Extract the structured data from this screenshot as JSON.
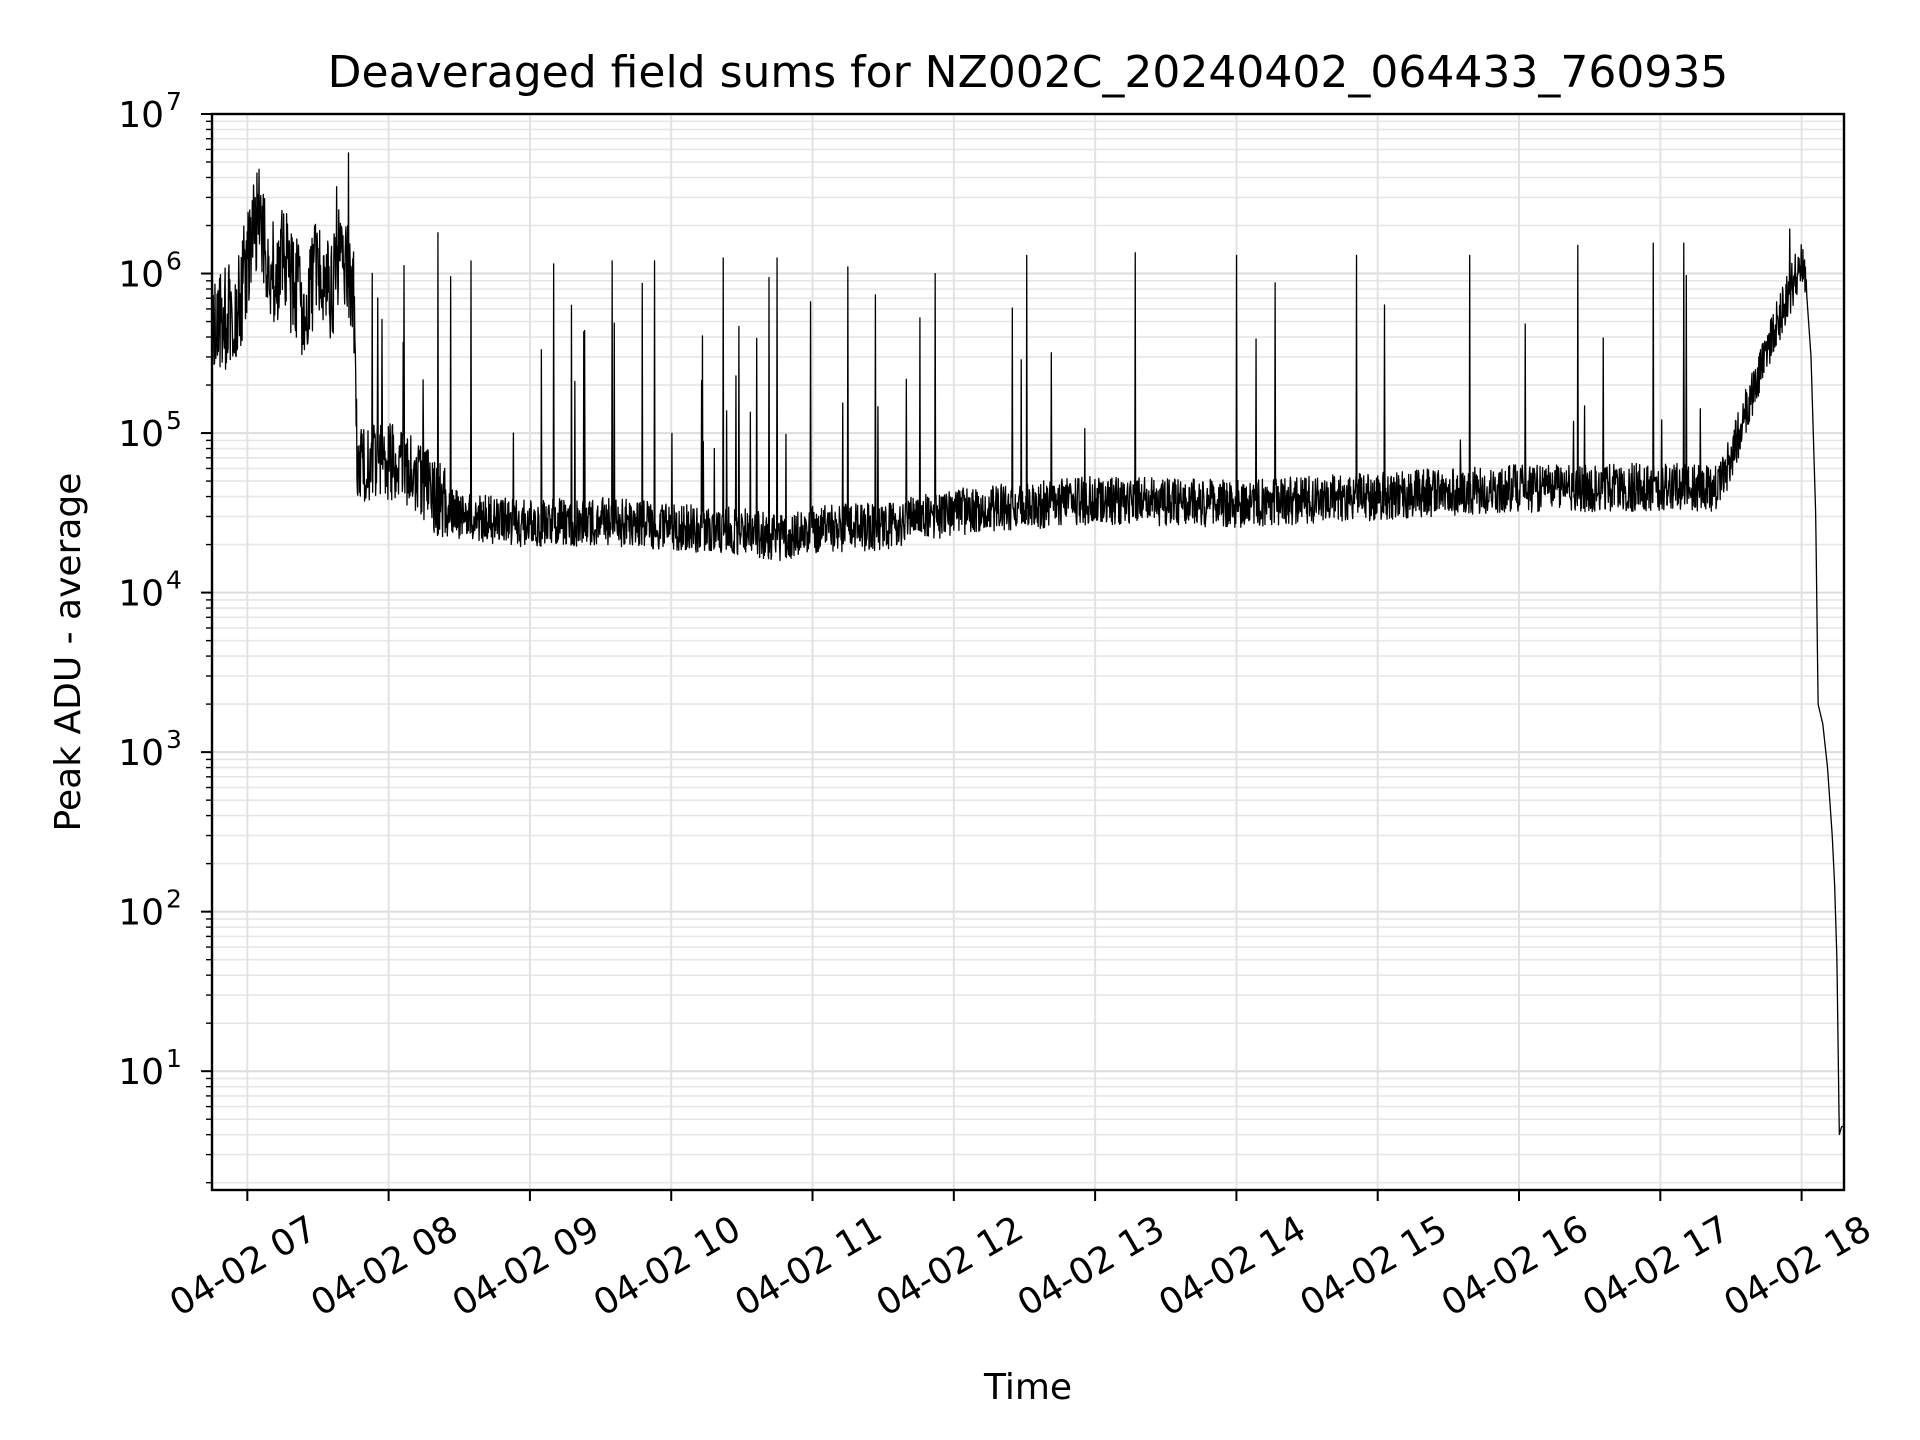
{
  "chart_data": {
    "type": "line",
    "title": "Deaveraged field sums for NZ002C_20240402_064433_760935",
    "xlabel": "Time",
    "ylabel": "Peak ADU - average",
    "yscale": "log",
    "ylim": [
      1.8,
      10000000
    ],
    "xlim": [
      "04-02 06:45",
      "04-02 18:18"
    ],
    "grid": "on (major and minor)",
    "line_color": "#000000",
    "x_ticks": [
      "04-02 07",
      "04-02 08",
      "04-02 09",
      "04-02 10",
      "04-02 11",
      "04-02 12",
      "04-02 13",
      "04-02 14",
      "04-02 15",
      "04-02 16",
      "04-02 17",
      "04-02 18"
    ],
    "y_ticks": [
      {
        "base": "10",
        "exp": "1",
        "value": 10
      },
      {
        "base": "10",
        "exp": "2",
        "value": 100
      },
      {
        "base": "10",
        "exp": "3",
        "value": 1000
      },
      {
        "base": "10",
        "exp": "4",
        "value": 10000
      },
      {
        "base": "10",
        "exp": "5",
        "value": 100000
      },
      {
        "base": "10",
        "exp": "6",
        "value": 1000000
      },
      {
        "base": "10",
        "exp": "7",
        "value": 10000000
      }
    ],
    "series": [
      {
        "points": [
          [
            "04-02 06:45",
            450000
          ],
          [
            "04-02 06:50",
            550000
          ],
          [
            "04-02 06:55",
            500000
          ],
          [
            "04-02 07:00",
            1200000
          ],
          [
            "04-02 07:05",
            2500000
          ],
          [
            "04-02 07:10",
            900000
          ],
          [
            "04-02 07:15",
            1300000
          ],
          [
            "04-02 07:20",
            800000
          ],
          [
            "04-02 07:25",
            600000
          ],
          [
            "04-02 07:30",
            1100000
          ],
          [
            "04-02 07:35",
            700000
          ],
          [
            "04-02 07:40",
            1500000
          ],
          [
            "04-02 07:45",
            900000
          ],
          [
            "04-02 07:47",
            60000
          ],
          [
            "04-02 07:55",
            70000
          ],
          [
            "04-02 08:10",
            60000
          ],
          [
            "04-02 08:20",
            40000
          ],
          [
            "04-02 08:30",
            30000
          ],
          [
            "04-02 09:00",
            27000
          ],
          [
            "04-02 09:30",
            28000
          ],
          [
            "04-02 10:00",
            26000
          ],
          [
            "04-02 10:30",
            24000
          ],
          [
            "04-02 10:45",
            22000
          ],
          [
            "04-02 11:00",
            25000
          ],
          [
            "04-02 11:30",
            26000
          ],
          [
            "04-02 12:00",
            32000
          ],
          [
            "04-02 12:30",
            35000
          ],
          [
            "04-02 13:00",
            38000
          ],
          [
            "04-02 13:30",
            37000
          ],
          [
            "04-02 14:00",
            36000
          ],
          [
            "04-02 14:30",
            38000
          ],
          [
            "04-02 15:00",
            40000
          ],
          [
            "04-02 15:30",
            43000
          ],
          [
            "04-02 16:00",
            45000
          ],
          [
            "04-02 16:30",
            45000
          ],
          [
            "04-02 17:00",
            46000
          ],
          [
            "04-02 17:25",
            45000
          ],
          [
            "04-02 17:30",
            70000
          ],
          [
            "04-02 17:40",
            200000
          ],
          [
            "04-02 17:50",
            500000
          ],
          [
            "04-02 17:58",
            1000000
          ],
          [
            "04-02 18:00",
            1100000
          ],
          [
            "04-02 18:02",
            800000
          ],
          [
            "04-02 18:04",
            300000
          ],
          [
            "04-02 18:06",
            30000
          ],
          [
            "04-02 18:07",
            2000
          ],
          [
            "04-02 18:09",
            1500
          ],
          [
            "04-02 18:11",
            800
          ],
          [
            "04-02 18:13",
            300
          ],
          [
            "04-02 18:14",
            150
          ],
          [
            "04-02 18:15",
            50
          ],
          [
            "04-02 18:16",
            4
          ],
          [
            "04-02 18:17",
            4.5
          ]
        ],
        "spikes": [
          [
            "04-02 07:05",
            4500000
          ],
          [
            "04-02 07:38",
            3500000
          ],
          [
            "04-02 07:43",
            5700000
          ],
          [
            "04-02 08:21",
            1800000
          ],
          [
            "04-02 08:35",
            1200000
          ],
          [
            "04-02 09:10",
            1150000
          ],
          [
            "04-02 09:35",
            1200000
          ],
          [
            "04-02 09:53",
            1200000
          ],
          [
            "04-02 10:22",
            1250000
          ],
          [
            "04-02 10:45",
            1250000
          ],
          [
            "04-02 11:15",
            1100000
          ],
          [
            "04-02 11:52",
            1000000
          ],
          [
            "04-02 12:31",
            1300000
          ],
          [
            "04-02 13:17",
            1350000
          ],
          [
            "04-02 14:00",
            1300000
          ],
          [
            "04-02 14:51",
            1300000
          ],
          [
            "04-02 15:39",
            1300000
          ],
          [
            "04-02 16:25",
            1500000
          ],
          [
            "04-02 16:57",
            1550000
          ],
          [
            "04-02 17:10",
            1550000
          ],
          [
            "04-02 17:55",
            1900000
          ]
        ]
      }
    ]
  }
}
